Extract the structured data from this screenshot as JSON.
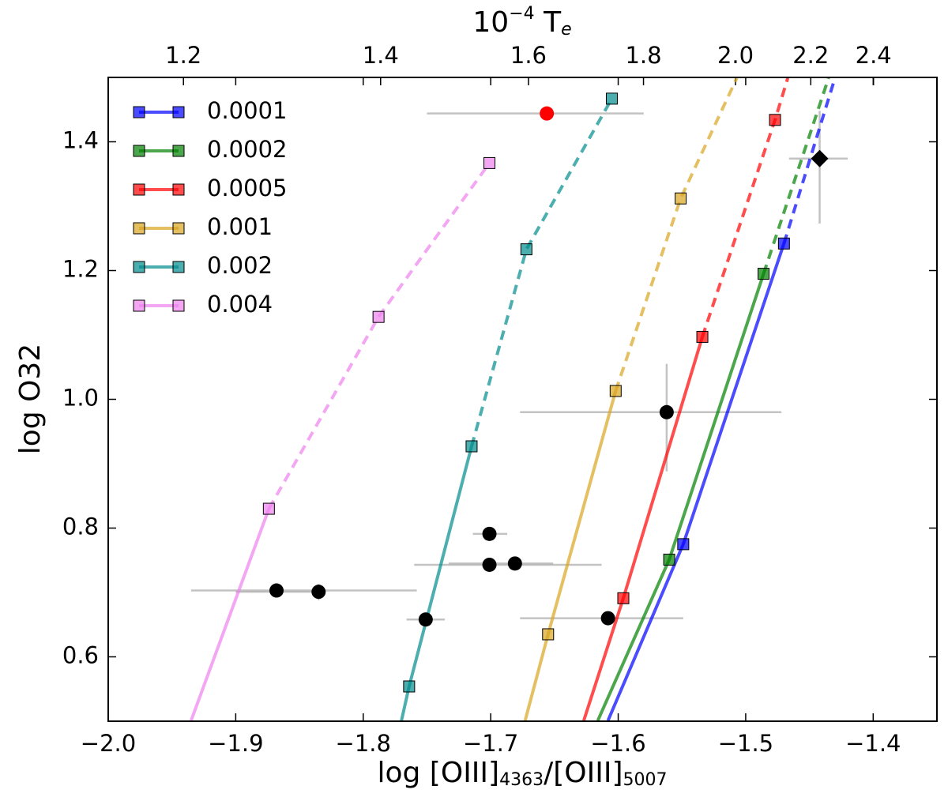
{
  "chart_data": {
    "type": "line",
    "xlabel": [
      "log [OIII]",
      "4363",
      "/[OIII]",
      "5007"
    ],
    "ylabel": "log O32",
    "x2label": [
      "10",
      "−4",
      " T",
      "e"
    ],
    "xlim": [
      -2.0,
      -1.35
    ],
    "ylim": [
      0.5,
      1.5
    ],
    "xticks": [
      {
        "value": -2.0,
        "label": "−2.0"
      },
      {
        "value": -1.9,
        "label": "−1.9"
      },
      {
        "value": -1.8,
        "label": "−1.8"
      },
      {
        "value": -1.7,
        "label": "−1.7"
      },
      {
        "value": -1.6,
        "label": "−1.6"
      },
      {
        "value": -1.5,
        "label": "−1.5"
      },
      {
        "value": -1.4,
        "label": "−1.4"
      }
    ],
    "yticks": [
      0.6,
      0.8,
      {
        "value": 1.0,
        "label": "1.0"
      },
      1.2,
      1.4
    ],
    "x2ticks": [
      1.2,
      1.4,
      1.6,
      1.8,
      {
        "value": 2.0,
        "label": "2.0"
      },
      2.2,
      2.4
    ],
    "legend": "upper left",
    "series": [
      {
        "name": "0.0001",
        "color": "#0000ff",
        "x": [
          -1.549,
          -1.47
        ],
        "y": [
          0.775,
          1.242
        ],
        "tail": [
          -1.608,
          0.501
        ],
        "head": [
          -1.43,
          1.499
        ],
        "dashed_from": 1
      },
      {
        "name": "0.0002",
        "color": "#008000",
        "x": [
          -1.56,
          -1.486
        ],
        "y": [
          0.751,
          1.195
        ],
        "tail": [
          -1.616,
          0.501
        ],
        "head": [
          -1.435,
          1.499
        ],
        "dashed_from": 1
      },
      {
        "name": "0.0005",
        "color": "#ff0000",
        "x": [
          -1.596,
          -1.534,
          -1.477
        ],
        "y": [
          0.691,
          1.097,
          1.434
        ],
        "tail": [
          -1.627,
          0.501
        ],
        "head": [
          -1.467,
          1.499
        ],
        "dashed_from": 1
      },
      {
        "name": "0.001",
        "color": "#daa520",
        "x": [
          -1.655,
          -1.602,
          -1.551
        ],
        "y": [
          0.635,
          1.013,
          1.312
        ],
        "tail": [
          -1.673,
          0.501
        ],
        "head": [
          -1.507,
          1.499
        ],
        "dashed_from": 1
      },
      {
        "name": "0.002",
        "color": "#008b8b",
        "x": [
          -1.764,
          -1.715,
          -1.672,
          -1.605
        ],
        "y": [
          0.554,
          0.927,
          1.233,
          1.467
        ],
        "tail": [
          -1.77,
          0.501
        ],
        "head": null,
        "dashed_from": 1
      },
      {
        "name": "0.004",
        "color": "#ee82ee",
        "x": [
          -1.874,
          -1.788,
          -1.701
        ],
        "y": [
          0.83,
          1.128,
          1.367
        ],
        "tail": [
          -1.935,
          0.501
        ],
        "head": null,
        "dashed_from": 0
      }
    ],
    "points": {
      "x": [
        -1.868,
        -1.835,
        -1.751,
        -1.701,
        -1.701,
        -1.681,
        -1.656,
        -1.608,
        -1.562,
        -1.442
      ],
      "y": [
        0.703,
        0.701,
        0.658,
        0.791,
        0.743,
        0.745,
        1.444,
        0.66,
        0.98,
        1.374
      ],
      "x_range": [
        [
          -1.935,
          -1.758
        ],
        [
          -1.9,
          -1.833
        ],
        [
          -1.766,
          -1.736
        ],
        [
          -1.714,
          -1.687
        ],
        [
          -1.76,
          -1.613
        ],
        [
          -1.733,
          -1.651
        ],
        [
          -1.75,
          -1.58
        ],
        [
          -1.677,
          -1.549
        ],
        [
          -1.677,
          -1.472
        ],
        [
          -1.466,
          -1.42
        ]
      ],
      "y_range": [
        null,
        [
          0.688,
          0.713
        ],
        null,
        null,
        null,
        null,
        null,
        null,
        [
          0.888,
          1.055
        ],
        [
          1.273,
          1.448
        ]
      ],
      "colors": [
        "#000000",
        "#000000",
        "#000000",
        "#000000",
        "#000000",
        "#000000",
        "#ff0000",
        "#000000",
        "#000000",
        "#000000"
      ],
      "markers": [
        "o",
        "o",
        "o",
        "o",
        "o",
        "o",
        "o",
        "o",
        "o",
        "D"
      ]
    }
  }
}
